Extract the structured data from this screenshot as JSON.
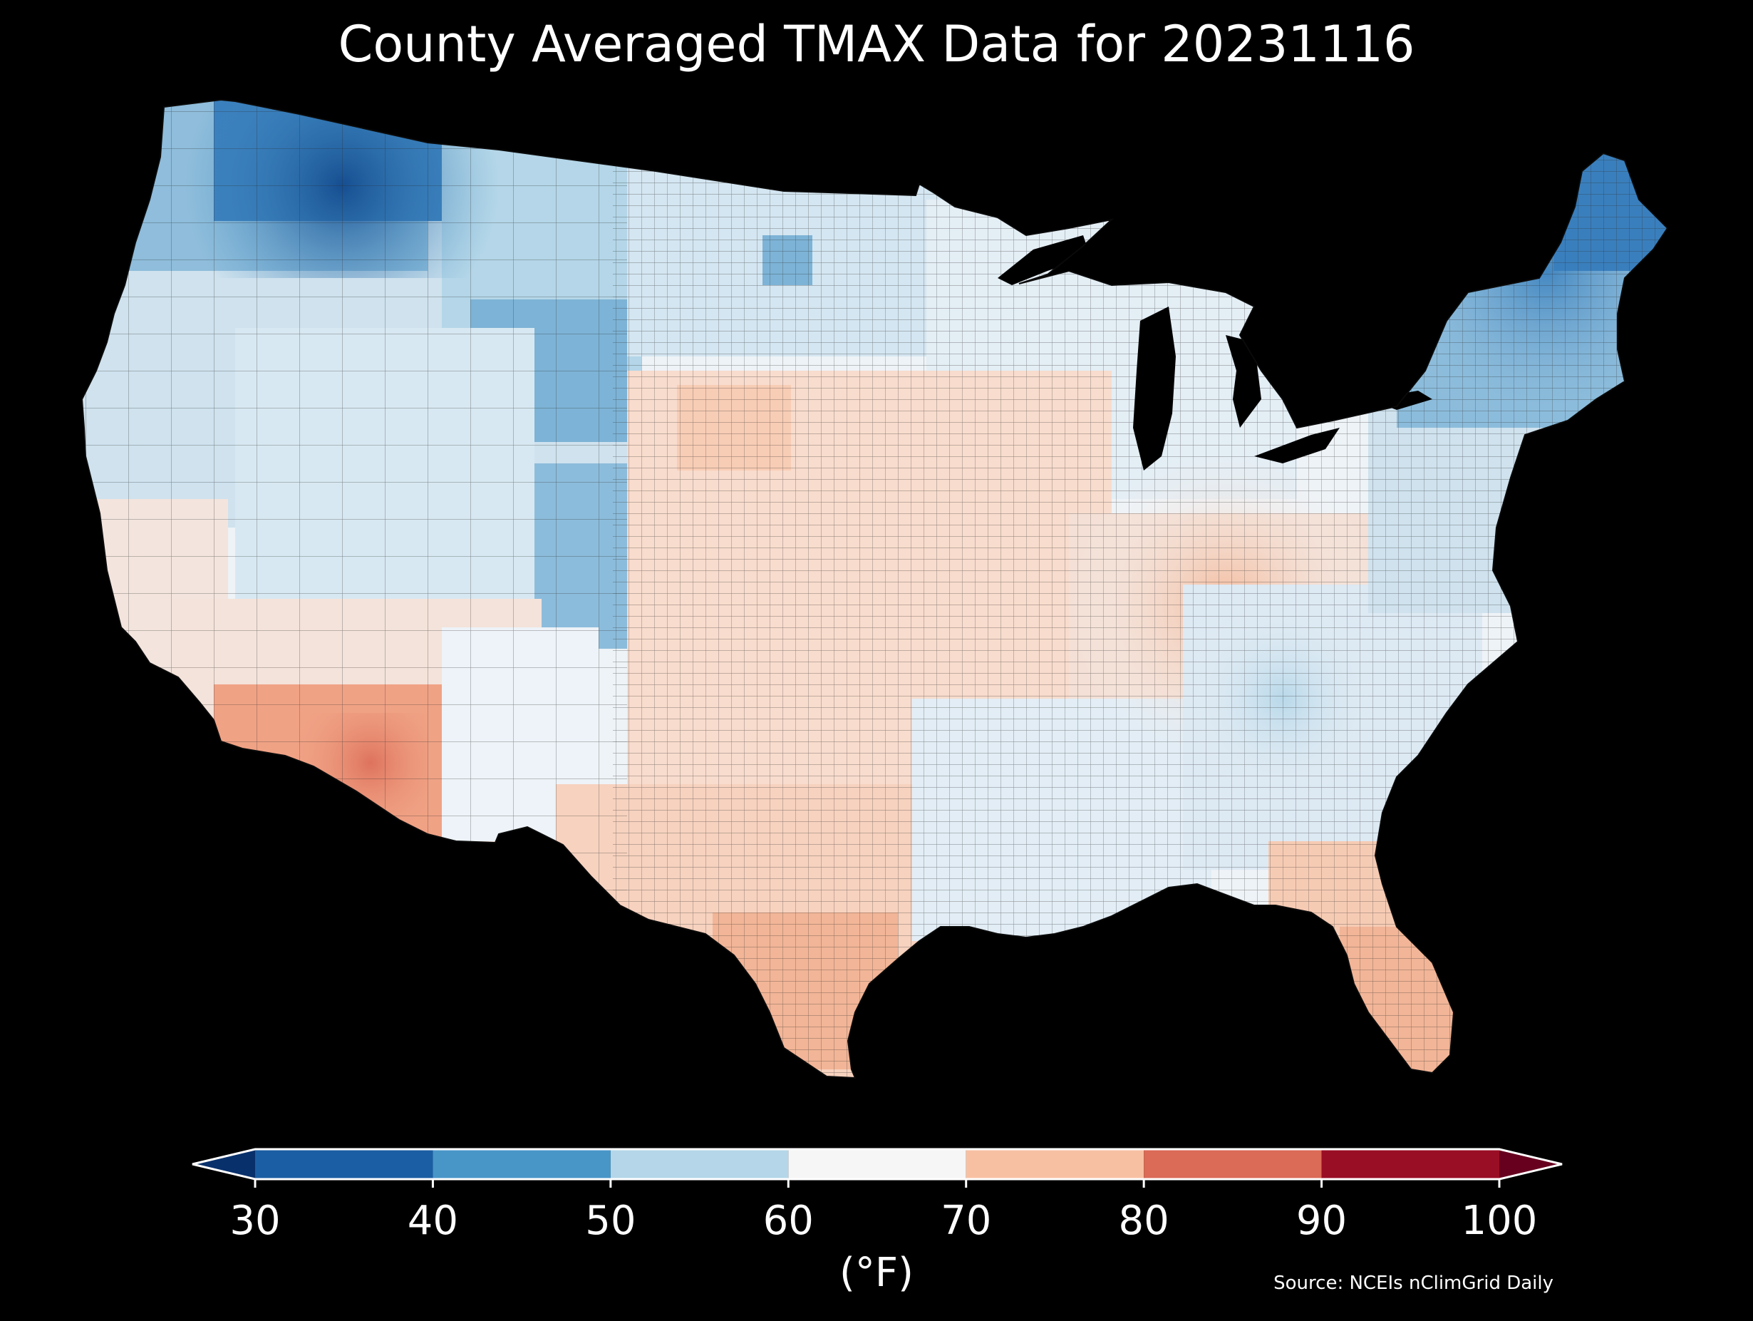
{
  "title": "County Averaged TMAX Data for 20231116",
  "colorbar": {
    "units_label": "(°F)",
    "ticks": [
      "30",
      "40",
      "50",
      "60",
      "70",
      "80",
      "90",
      "100"
    ],
    "bins": [
      {
        "min": 30,
        "max": 40,
        "color": "#1b5ea3"
      },
      {
        "min": 40,
        "max": 50,
        "color": "#4896c8"
      },
      {
        "min": 50,
        "max": 60,
        "color": "#b4d6e8"
      },
      {
        "min": 60,
        "max": 70,
        "color": "#f6f6f6"
      },
      {
        "min": 70,
        "max": 80,
        "color": "#f8c0a3"
      },
      {
        "min": 80,
        "max": 90,
        "color": "#db6a56"
      },
      {
        "min": 90,
        "max": 100,
        "color": "#9a0e25"
      }
    ],
    "under_color": "#08306b",
    "over_color": "#67001f"
  },
  "source_note": "Source: NCEIs nClimGrid Daily",
  "map": {
    "region": "Contiguous United States",
    "variable": "TMAX",
    "date": "20231116",
    "background_color": "#000000",
    "border_color": "#1a1a1a"
  }
}
